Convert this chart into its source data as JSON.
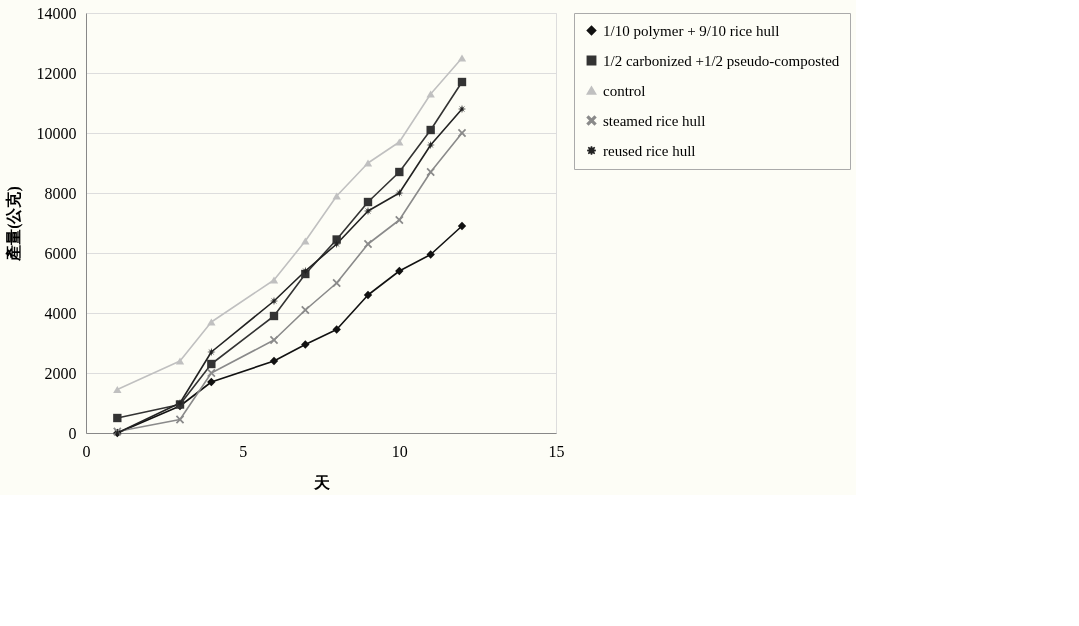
{
  "chart_data": {
    "type": "line",
    "xlabel": "天",
    "ylabel": "產量(公克)",
    "x": [
      1,
      3,
      4,
      6,
      7,
      8,
      9,
      10,
      11,
      12
    ],
    "xlim": [
      0,
      15
    ],
    "xticks": [
      0,
      5,
      10,
      15
    ],
    "ylim": [
      0,
      14000
    ],
    "yticks": [
      0,
      2000,
      4000,
      6000,
      8000,
      10000,
      12000,
      14000
    ],
    "grid": "y",
    "legend": "right",
    "line_style": "solid",
    "series": [
      {
        "name": "1/10 polymer + 9/10 rice hull",
        "color": "#111111",
        "marker": "diamond",
        "values": [
          0,
          900,
          1700,
          2400,
          2950,
          3450,
          4600,
          5400,
          5950,
          6900
        ]
      },
      {
        "name": "1/2 carbonized +1/2 pseudo-composted",
        "color": "#333333",
        "marker": "square",
        "values": [
          500,
          950,
          2300,
          3900,
          5300,
          6450,
          7700,
          8700,
          10100,
          11700
        ]
      },
      {
        "name": "control",
        "color": "#c0c0c0",
        "marker": "triangle",
        "values": [
          1450,
          2400,
          3700,
          5100,
          6400,
          7900,
          9000,
          9700,
          11300,
          12500
        ]
      },
      {
        "name": "steamed rice hull",
        "color": "#8a8a8a",
        "marker": "cross",
        "values": [
          50,
          450,
          2000,
          3100,
          4100,
          5000,
          6300,
          7100,
          8700,
          10000
        ]
      },
      {
        "name": "reused rice hull",
        "color": "#222222",
        "marker": "star",
        "values": [
          0,
          1000,
          2700,
          4400,
          5400,
          6300,
          7400,
          8000,
          9600,
          10800
        ]
      }
    ]
  }
}
